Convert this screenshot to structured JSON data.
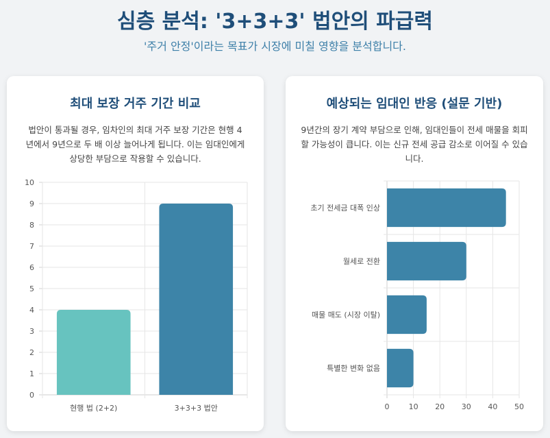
{
  "header": {
    "title": "심층 분석: '3+3+3' 법안의 파급력",
    "subtitle": "'주거 안정'이라는 목표가 시장에 미칠 영향을 분석합니다."
  },
  "cards": [
    {
      "title": "최대 보장 거주 기간 비교",
      "description": "법안이 통과될 경우, 임차인의 최대 거주 보장 기간은 현행 4년에서 9년으로 두 배 이상 늘어나게 됩니다. 이는 임대인에게 상당한 부담으로 작용할 수 있습니다."
    },
    {
      "title": "예상되는 임대인 반응 (설문 기반)",
      "description": "9년간의 장기 계약 부담으로 인해, 임대인들이 전세 매물을 회피할 가능성이 큽니다. 이는 신규 전세 공급 감소로 이어질 수 있습니다."
    }
  ],
  "chart_data": [
    {
      "type": "bar",
      "orientation": "vertical",
      "categories": [
        "현행 법 (2+2)",
        "3+3+3 법안"
      ],
      "values": [
        4,
        9
      ],
      "colors": [
        "#67c3bf",
        "#3d84a8"
      ],
      "ylim": [
        0,
        10
      ],
      "yticks": [
        0,
        1,
        2,
        3,
        4,
        5,
        6,
        7,
        8,
        9,
        10
      ],
      "grid": true,
      "legend": "none"
    },
    {
      "type": "bar",
      "orientation": "horizontal",
      "categories": [
        "초기 전세금 대폭 인상",
        "월세로 전환",
        "매물 매도 (시장 이탈)",
        "특별한 변화 없음"
      ],
      "values": [
        45,
        30,
        15,
        10
      ],
      "colors": [
        "#3d84a8",
        "#3d84a8",
        "#3d84a8",
        "#3d84a8"
      ],
      "xlim": [
        0,
        50
      ],
      "xticks": [
        0,
        10,
        20,
        30,
        40,
        50
      ],
      "grid": true,
      "legend": "none"
    }
  ]
}
